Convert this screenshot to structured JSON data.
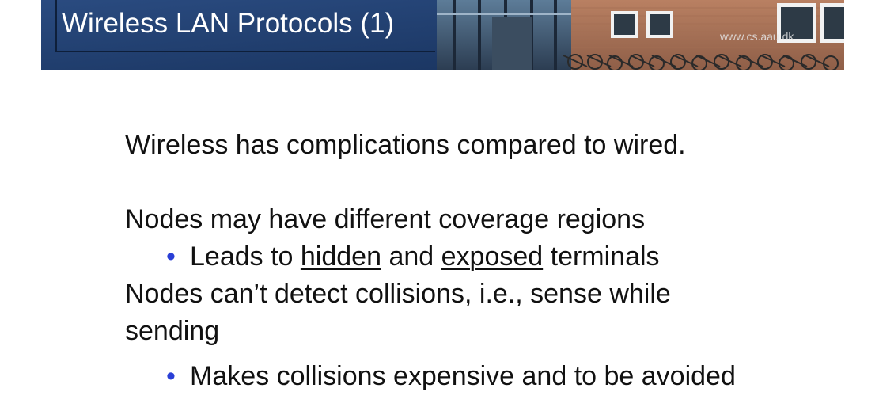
{
  "header": {
    "title": "Wireless LAN Protocols (1)",
    "url": "www.cs.aau.dk"
  },
  "body": {
    "line1": "Wireless has complications compared to wired.",
    "line2": "Nodes may have different coverage regions",
    "bullet1": {
      "marker": "•",
      "part1": "Leads to ",
      "hidden": "hidden",
      "and": " and ",
      "exposed": "exposed",
      "part2": " terminals"
    },
    "line3": "Nodes can’t detect collisions, i.e., sense while",
    "line4": "sending",
    "bullet2": {
      "marker": "•",
      "text": "Makes collisions expensive and to be avoided"
    }
  },
  "colors": {
    "banner_blue": "#1f3a66",
    "bullet_blue": "#2a3fd6",
    "text": "#111111"
  }
}
